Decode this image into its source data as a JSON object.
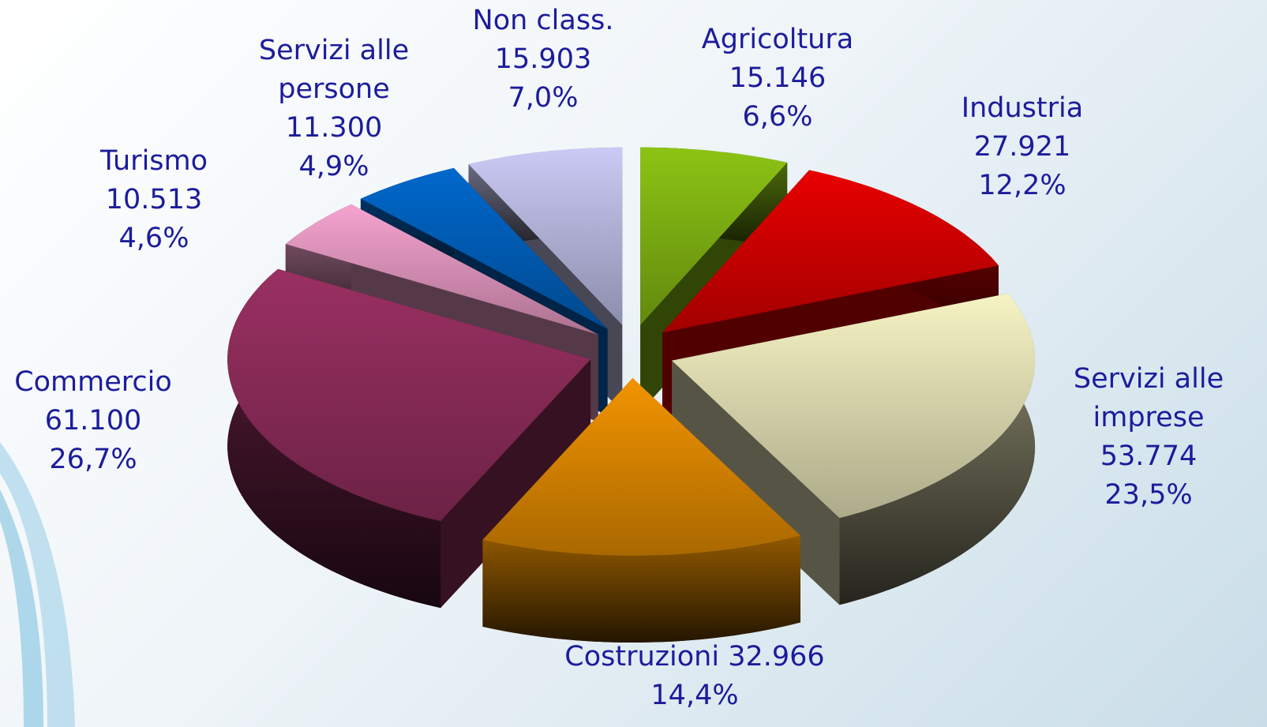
{
  "chart_data": {
    "type": "pie3d",
    "categories": [
      "Agricoltura",
      "Industria",
      "Servizi alle imprese",
      "Costruzioni",
      "Commercio",
      "Turismo",
      "Servizi alle persone",
      "Non class."
    ],
    "values": [
      15146,
      27921,
      53774,
      32966,
      61100,
      10513,
      11300,
      15903
    ],
    "value_labels": [
      "15.146",
      "27.921",
      "53.774",
      "32.966",
      "61.100",
      "10.513",
      "11.300",
      "15.903"
    ],
    "percentages": [
      6.6,
      12.2,
      23.5,
      14.4,
      26.7,
      4.6,
      4.9,
      7.0
    ],
    "percentage_labels": [
      "6,6%",
      "12,2%",
      "23,5%",
      "14,4%",
      "26,7%",
      "4,6%",
      "4,9%",
      "7,0%"
    ],
    "colors": [
      "#8cc414",
      "#e80000",
      "#f6f3c4",
      "#f29400",
      "#9a3062",
      "#f5a3cf",
      "#0068cc",
      "#cacaf5"
    ]
  }
}
